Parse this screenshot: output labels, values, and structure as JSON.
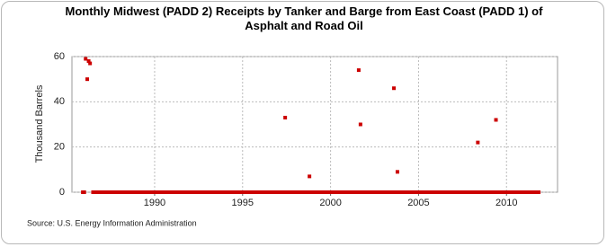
{
  "chart_data": {
    "type": "scatter",
    "title": "Monthly Midwest (PADD 2) Receipts by Tanker and Barge from East Coast (PADD 1) of Asphalt and Road Oil",
    "y_label": "Thousand Barrels",
    "source": "Source: U.S. Energy Information Administration",
    "color": "#cc0000",
    "xlim": [
      1985.3,
      2012.9
    ],
    "xticks": [
      1990,
      1995,
      2000,
      2005,
      2010
    ],
    "ylim": [
      0,
      60
    ],
    "yticks": [
      0,
      20,
      40,
      60
    ],
    "grid": true,
    "x": [
      1985.92,
      1986,
      1986.08,
      1986.17,
      1986.25,
      1986.33,
      1986.5,
      1986.67,
      1986.83,
      1987,
      1987.17,
      1987.33,
      1987.5,
      1987.67,
      1987.83,
      1988,
      1988.17,
      1988.33,
      1988.5,
      1988.67,
      1988.83,
      1989,
      1989.17,
      1989.33,
      1989.5,
      1989.67,
      1989.83,
      1990,
      1990.17,
      1990.33,
      1990.5,
      1990.67,
      1990.83,
      1991,
      1991.17,
      1991.33,
      1991.5,
      1991.67,
      1991.83,
      1992,
      1992.17,
      1992.33,
      1992.5,
      1992.67,
      1992.83,
      1993,
      1993.17,
      1993.33,
      1993.5,
      1993.67,
      1993.83,
      1994,
      1994.17,
      1994.33,
      1994.5,
      1994.67,
      1994.83,
      1995,
      1995.17,
      1995.33,
      1995.5,
      1995.67,
      1995.83,
      1996,
      1996.17,
      1996.33,
      1996.5,
      1996.67,
      1996.83,
      1997,
      1997.17,
      1997.33,
      1997.42,
      1997.5,
      1997.67,
      1997.83,
      1998,
      1998.17,
      1998.33,
      1998.5,
      1998.67,
      1998.8,
      1998.83,
      1999,
      1999.17,
      1999.33,
      1999.5,
      1999.67,
      1999.83,
      2000,
      2000.17,
      2000.33,
      2000.5,
      2000.67,
      2000.83,
      2001,
      2001.17,
      2001.33,
      2001.5,
      2001.6,
      2001.67,
      2001.7,
      2001.83,
      2002,
      2002.17,
      2002.33,
      2002.5,
      2002.67,
      2002.83,
      2003,
      2003.17,
      2003.33,
      2003.5,
      2003.6,
      2003.67,
      2003.8,
      2003.83,
      2004,
      2004.17,
      2004.33,
      2004.5,
      2004.67,
      2004.83,
      2005,
      2005.17,
      2005.33,
      2005.5,
      2005.67,
      2005.83,
      2006,
      2006.17,
      2006.33,
      2006.5,
      2006.67,
      2006.83,
      2007,
      2007.17,
      2007.33,
      2007.5,
      2007.67,
      2007.83,
      2008,
      2008.17,
      2008.33,
      2008.37,
      2008.5,
      2008.67,
      2008.83,
      2009,
      2009.17,
      2009.33,
      2009.4,
      2009.5,
      2009.67,
      2009.83,
      2010,
      2010.17,
      2010.33,
      2010.5,
      2010.67,
      2010.83,
      2011,
      2011.17,
      2011.33,
      2011.5,
      2011.67,
      2011.83
    ],
    "values": [
      0,
      0,
      59,
      50,
      58,
      57,
      0,
      0,
      0,
      0,
      0,
      0,
      0,
      0,
      0,
      0,
      0,
      0,
      0,
      0,
      0,
      0,
      0,
      0,
      0,
      0,
      0,
      0,
      0,
      0,
      0,
      0,
      0,
      0,
      0,
      0,
      0,
      0,
      0,
      0,
      0,
      0,
      0,
      0,
      0,
      0,
      0,
      0,
      0,
      0,
      0,
      0,
      0,
      0,
      0,
      0,
      0,
      0,
      0,
      0,
      0,
      0,
      0,
      0,
      0,
      0,
      0,
      0,
      0,
      0,
      0,
      0,
      33,
      0,
      0,
      0,
      0,
      0,
      0,
      0,
      0,
      7,
      0,
      0,
      0,
      0,
      0,
      0,
      0,
      0,
      0,
      0,
      0,
      0,
      0,
      0,
      0,
      0,
      0,
      54,
      0,
      30,
      0,
      0,
      0,
      0,
      0,
      0,
      0,
      0,
      0,
      0,
      0,
      46,
      0,
      9,
      0,
      0,
      0,
      0,
      0,
      0,
      0,
      0,
      0,
      0,
      0,
      0,
      0,
      0,
      0,
      0,
      0,
      0,
      0,
      0,
      0,
      0,
      0,
      0,
      0,
      0,
      0,
      0,
      22,
      0,
      0,
      0,
      0,
      0,
      0,
      32,
      0,
      0,
      0,
      0,
      0,
      0,
      0,
      0,
      0,
      0,
      0,
      0,
      0,
      0,
      0
    ]
  }
}
